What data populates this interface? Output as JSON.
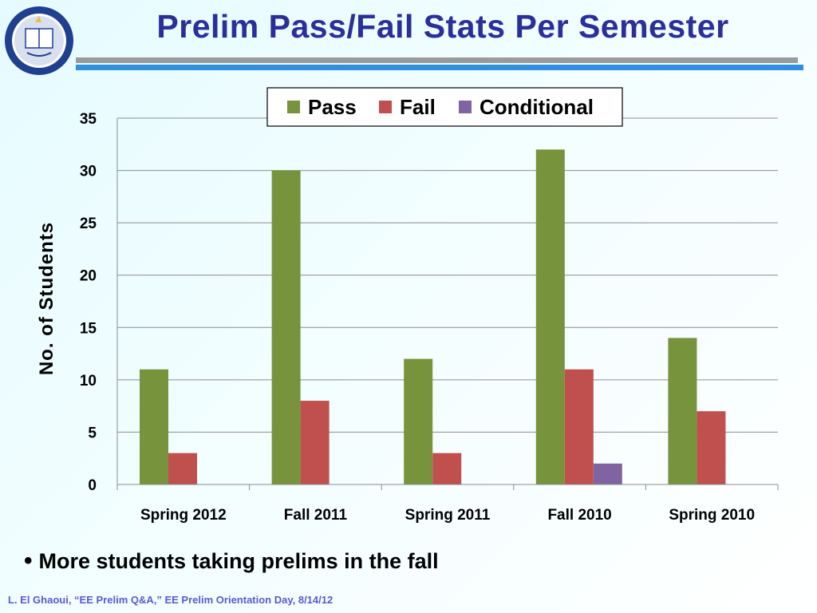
{
  "title": "Prelim Pass/Fail Stats Per Semester",
  "bullet": "More students taking prelims in the fall",
  "footer": "L. El Ghaoui, “EE Prelim Q&A,” EE Prelim Orientation Day, 8/14/12",
  "colors": {
    "pass": "#77933c",
    "fail": "#c0504d",
    "conditional": "#8064a2",
    "title": "#2b2f9a"
  },
  "chart_data": {
    "type": "bar",
    "categories": [
      "Spring 2012",
      "Fall 2011",
      "Spring 2011",
      "Fall 2010",
      "Spring 2010"
    ],
    "series": [
      {
        "name": "Pass",
        "values": [
          11,
          30,
          12,
          32,
          14
        ]
      },
      {
        "name": "Fail",
        "values": [
          3,
          8,
          3,
          11,
          7
        ]
      },
      {
        "name": "Conditional",
        "values": [
          0,
          0,
          0,
          2,
          0
        ]
      }
    ],
    "ylabel": "No. of Students",
    "ylim": [
      0,
      35
    ],
    "yticks": [
      0,
      5,
      10,
      15,
      20,
      25,
      30,
      35
    ],
    "grid": true,
    "legend": "top-right"
  }
}
